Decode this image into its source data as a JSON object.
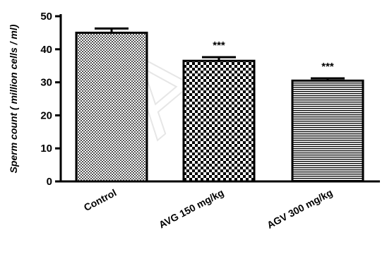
{
  "chart_data": {
    "type": "bar",
    "categories": [
      "Control",
      "AVG 150 mg/kg",
      "AGV 300 mg/kg"
    ],
    "values": [
      45,
      36.5,
      30.5
    ],
    "errors": [
      1.3,
      1.1,
      0.7
    ],
    "significance": [
      "",
      "***",
      "***"
    ],
    "patterns": [
      "fine-check",
      "checker",
      "hlines"
    ],
    "title": "",
    "xlabel": "",
    "ylabel": "Sperm count ( million cells / ml)",
    "ylim": [
      0,
      50
    ],
    "yticks": [
      "0",
      "10",
      "20",
      "30",
      "40",
      "50"
    ],
    "grid": false,
    "legend": "none"
  },
  "watermark_text": "A"
}
